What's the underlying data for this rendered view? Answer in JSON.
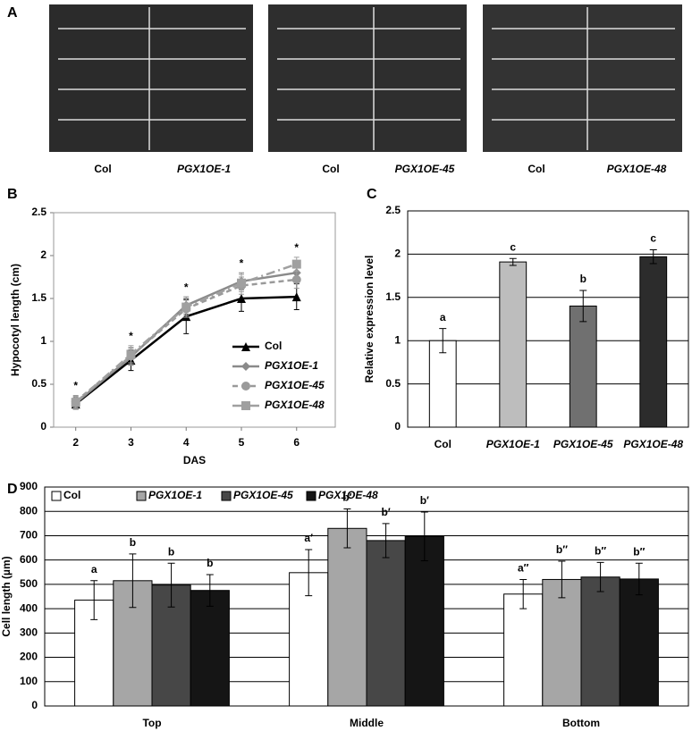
{
  "panel_a": {
    "label": "A",
    "captions": [
      "Col",
      "PGX1OE-1",
      "Col",
      "PGX1OE-45",
      "Col",
      "PGX1OE-48"
    ]
  },
  "chart_data": [
    {
      "type": "line",
      "label": "B",
      "x_label": "DAS",
      "y_label": "Hypocotyl length (cm)",
      "x": [
        2,
        3,
        4,
        5,
        6
      ],
      "xlim": [
        1.6,
        6.7
      ],
      "xticks": [
        2,
        3,
        4,
        5,
        6
      ],
      "ylim": [
        0,
        2.5
      ],
      "yticks": [
        0,
        0.5,
        1,
        1.5,
        2,
        2.5
      ],
      "grid": false,
      "legend": "lower right",
      "annotations": [
        "*",
        "*",
        "*",
        "*",
        "*"
      ],
      "series": [
        {
          "name": "Col",
          "color": "#000000",
          "marker": "triangle",
          "linestyle": "solid",
          "values": [
            0.27,
            0.78,
            1.29,
            1.5,
            1.52
          ],
          "errors": [
            0.06,
            0.12,
            0.2,
            0.15,
            0.15
          ]
        },
        {
          "name": "PGX1OE-1",
          "color": "#8a8a8a",
          "marker": "diamond",
          "linestyle": "solid",
          "values": [
            0.28,
            0.82,
            1.42,
            1.7,
            1.8
          ],
          "errors": [
            0.07,
            0.1,
            0.1,
            0.1,
            0.1
          ]
        },
        {
          "name": "PGX1OE-45",
          "color": "#9a9a9a",
          "marker": "circle",
          "linestyle": "dashed",
          "values": [
            0.3,
            0.83,
            1.38,
            1.65,
            1.72
          ],
          "errors": [
            0.07,
            0.1,
            0.1,
            0.1,
            0.1
          ]
        },
        {
          "name": "PGX1OE-48",
          "color": "#a0a0a0",
          "marker": "square",
          "linestyle": "dashdot",
          "values": [
            0.29,
            0.85,
            1.4,
            1.68,
            1.9
          ],
          "errors": [
            0.07,
            0.1,
            0.1,
            0.1,
            0.08
          ]
        }
      ]
    },
    {
      "type": "bar",
      "label": "C",
      "y_label": "Relative expression level",
      "categories": [
        "Col",
        "PGX1OE-1",
        "PGX1OE-45",
        "PGX1OE-48"
      ],
      "ylim": [
        0,
        2.5
      ],
      "yticks": [
        0,
        0.5,
        1,
        1.5,
        2,
        2.5
      ],
      "grid": true,
      "series": [
        {
          "colors": [
            "#ffffff",
            "#bdbdbd",
            "#707070",
            "#2c2c2c"
          ],
          "values": [
            1.0,
            1.91,
            1.4,
            1.97
          ],
          "errors": [
            0.14,
            0.04,
            0.18,
            0.08
          ],
          "annotations": [
            "a",
            "c",
            "b",
            "c"
          ]
        }
      ]
    },
    {
      "type": "bar",
      "label": "D",
      "y_label": "Cell length (µm)",
      "categories": [
        "Top",
        "Middle",
        "Bottom"
      ],
      "ylim": [
        0,
        900
      ],
      "yticks": [
        0,
        100,
        200,
        300,
        400,
        500,
        600,
        700,
        800,
        900
      ],
      "grid": true,
      "legend": "upper left",
      "series": [
        {
          "name": "Col",
          "color": "#ffffff",
          "values": [
            435,
            548,
            460
          ],
          "errors": [
            80,
            95,
            60
          ],
          "annotations": [
            "a",
            "a′",
            "a″"
          ]
        },
        {
          "name": "PGX1OE-1",
          "color": "#a6a6a6",
          "values": [
            515,
            730,
            520
          ],
          "errors": [
            110,
            80,
            75
          ],
          "annotations": [
            "b",
            "b′",
            "b″"
          ]
        },
        {
          "name": "PGX1OE-45",
          "color": "#474747",
          "values": [
            497,
            680,
            530
          ],
          "errors": [
            90,
            70,
            60
          ],
          "annotations": [
            "b",
            "b′",
            "b″"
          ]
        },
        {
          "name": "PGX1OE-48",
          "color": "#151515",
          "values": [
            475,
            697,
            522
          ],
          "errors": [
            65,
            100,
            65
          ],
          "annotations": [
            "b",
            "b′",
            "b″"
          ]
        }
      ]
    }
  ]
}
